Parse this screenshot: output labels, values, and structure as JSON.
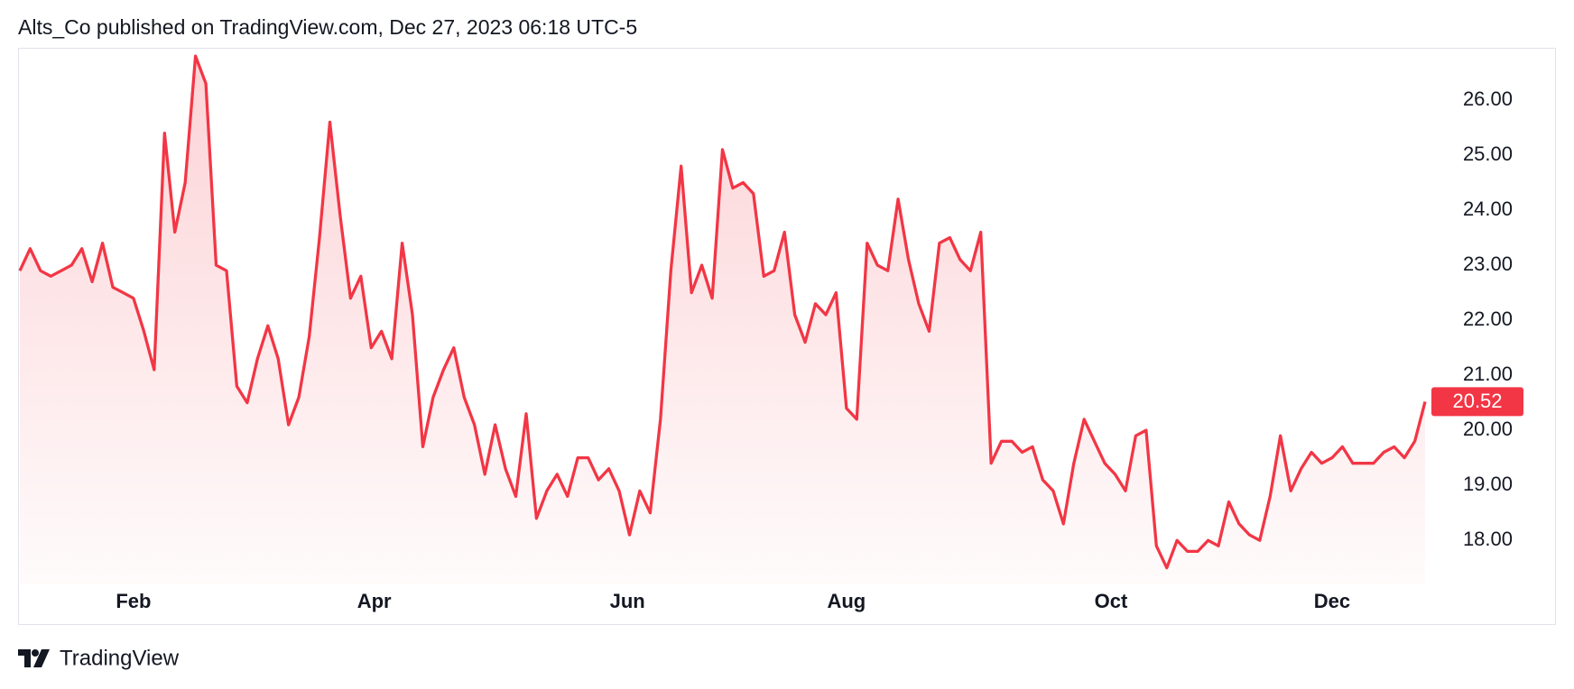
{
  "header": "Alts_Co published on TradingView.com, Dec 27, 2023 06:18 UTC-5",
  "chart_data": {
    "type": "area",
    "color": "#f23645",
    "values": [
      22.9,
      23.3,
      22.9,
      22.8,
      22.9,
      23.0,
      23.3,
      22.7,
      23.4,
      22.6,
      22.5,
      22.4,
      21.8,
      21.1,
      25.4,
      23.6,
      24.5,
      26.8,
      26.3,
      23.0,
      22.9,
      20.8,
      20.5,
      21.3,
      21.9,
      21.3,
      20.1,
      20.6,
      21.7,
      23.5,
      25.6,
      23.9,
      22.4,
      22.8,
      21.5,
      21.8,
      21.3,
      23.4,
      22.1,
      19.7,
      20.6,
      21.1,
      21.5,
      20.6,
      20.1,
      19.2,
      20.1,
      19.3,
      18.8,
      20.3,
      18.4,
      18.9,
      19.2,
      18.8,
      19.5,
      19.5,
      19.1,
      19.3,
      18.9,
      18.1,
      18.9,
      18.5,
      20.2,
      22.9,
      24.8,
      22.5,
      23.0,
      22.4,
      25.1,
      24.4,
      24.5,
      24.3,
      22.8,
      22.9,
      23.6,
      22.1,
      21.6,
      22.3,
      22.1,
      22.5,
      20.4,
      20.2,
      23.4,
      23.0,
      22.9,
      24.2,
      23.1,
      22.3,
      21.8,
      23.4,
      23.5,
      23.1,
      22.9,
      23.6,
      19.4,
      19.8,
      19.8,
      19.6,
      19.7,
      19.1,
      18.9,
      18.3,
      19.4,
      20.2,
      19.8,
      19.4,
      19.2,
      18.9,
      19.9,
      20.0,
      17.9,
      17.5,
      18.0,
      17.8,
      17.8,
      18.0,
      17.9,
      18.7,
      18.3,
      18.1,
      18.0,
      18.8,
      19.9,
      18.9,
      19.3,
      19.6,
      19.4,
      19.5,
      19.7,
      19.4,
      19.4,
      19.4,
      19.6,
      19.7,
      19.5,
      19.8,
      20.52
    ],
    "xticks": [
      {
        "value": 11,
        "label": "Feb"
      },
      {
        "value": 34.3,
        "label": "Apr"
      },
      {
        "value": 58.8,
        "label": "Jun"
      },
      {
        "value": 80,
        "label": "Aug"
      },
      {
        "value": 105.6,
        "label": "Oct"
      },
      {
        "value": 127,
        "label": "Dec"
      }
    ],
    "ylim": [
      17.2,
      26.95
    ],
    "yticks": [
      {
        "value": 18,
        "label": "18.00"
      },
      {
        "value": 19,
        "label": "19.00"
      },
      {
        "value": 20,
        "label": "20.00"
      },
      {
        "value": 21,
        "label": "21.00"
      },
      {
        "value": 22,
        "label": "22.00"
      },
      {
        "value": 23,
        "label": "23.00"
      },
      {
        "value": 24,
        "label": "24.00"
      },
      {
        "value": 25,
        "label": "25.00"
      },
      {
        "value": 26,
        "label": "26.00"
      }
    ],
    "grid": false
  },
  "footer": {
    "brand": "TradingView"
  }
}
